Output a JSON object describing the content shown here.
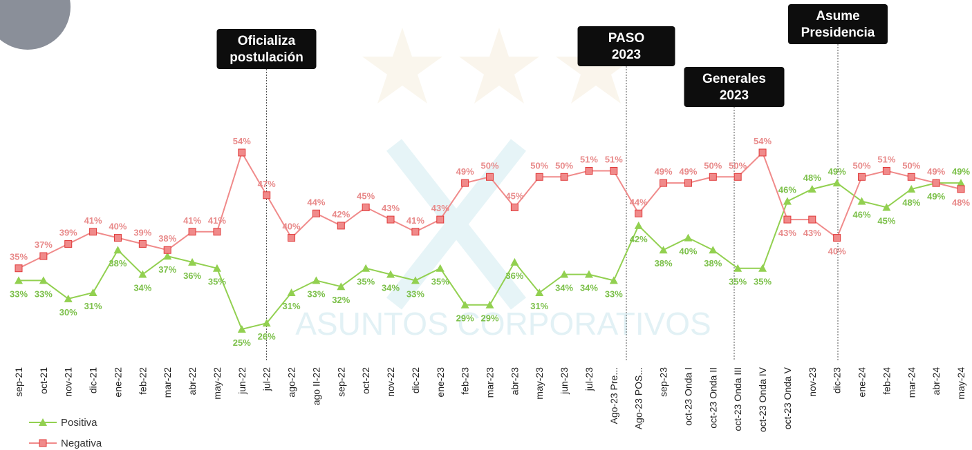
{
  "chart_data": {
    "type": "line",
    "categories": [
      "sep-21",
      "oct-21",
      "nov-21",
      "dic-21",
      "ene-22",
      "feb-22",
      "mar-22",
      "abr-22",
      "may-22",
      "jun-22",
      "jul-22",
      "ago-22",
      "ago II-22",
      "sep-22",
      "oct-22",
      "nov-22",
      "dic-22",
      "ene-23",
      "feb-23",
      "mar-23",
      "abr-23",
      "may-23",
      "jun-23",
      "jul-23",
      "Ago-23 Pre...",
      "Ago-23 POS...",
      "sep-23",
      "oct-23 Onda I",
      "oct-23 Onda II",
      "oct-23 Onda III",
      "oct-23 Onda IV",
      "oct-23 Onda V",
      "nov-23",
      "dic-23",
      "ene-24",
      "feb-24",
      "mar-24",
      "abr-24",
      "may-24"
    ],
    "series": [
      {
        "name": "Positiva",
        "color": "#92d050",
        "marker": "triangle",
        "values": [
          33,
          33,
          30,
          31,
          38,
          34,
          37,
          36,
          35,
          25,
          26,
          31,
          33,
          32,
          35,
          34,
          33,
          35,
          29,
          29,
          36,
          31,
          34,
          34,
          33,
          42,
          38,
          40,
          38,
          35,
          35,
          46,
          48,
          49,
          46,
          45,
          48,
          49,
          49
        ],
        "value_labels": [
          "33%",
          "33%",
          "30%",
          "31%",
          "38%",
          "34%",
          "37%",
          "36%",
          "35%",
          "25%",
          "26%",
          "31%",
          "33%",
          "32%",
          "35%",
          "34%",
          "33%",
          "35%",
          "29%",
          "29%",
          "36%",
          "31%",
          "34%",
          "34%",
          "33%",
          "42%",
          "38%",
          "40%",
          "38%",
          "35%",
          "35%",
          "46%",
          "48%",
          "49%",
          "46%",
          "45%",
          "48%",
          "49%",
          "49%"
        ]
      },
      {
        "name": "Negativa",
        "color": "#f08a8a",
        "marker": "square",
        "values": [
          35,
          37,
          39,
          41,
          40,
          39,
          38,
          41,
          41,
          54,
          47,
          40,
          44,
          42,
          45,
          43,
          41,
          43,
          49,
          50,
          45,
          50,
          50,
          51,
          51,
          44,
          49,
          49,
          50,
          50,
          54,
          43,
          43,
          40,
          50,
          51,
          50,
          49,
          48
        ],
        "value_labels": [
          "35%",
          "37%",
          "39%",
          "41%",
          "40%",
          "39%",
          "38%",
          "41%",
          "41%",
          "54%",
          "47%",
          "40%",
          "44%",
          "42%",
          "45%",
          "43%",
          "41%",
          "43%",
          "49%",
          "50%",
          "45%",
          "50%",
          "50%",
          "51%",
          "51%",
          "44%",
          "49%",
          "49%",
          "50%",
          "50%",
          "54%",
          "43%",
          "43%",
          "40%",
          "50%",
          "51%",
          "50%",
          "49%",
          "48%"
        ]
      }
    ],
    "annotations": [
      {
        "lines": [
          "Oficializa",
          "postulación"
        ]
      },
      {
        "lines": [
          "PASO",
          "2023"
        ]
      },
      {
        "lines": [
          "Generales",
          "2023"
        ]
      },
      {
        "lines": [
          "Asume",
          "Presidencia"
        ]
      }
    ],
    "watermark": "ASUNTOS CORPORATIVOS"
  }
}
